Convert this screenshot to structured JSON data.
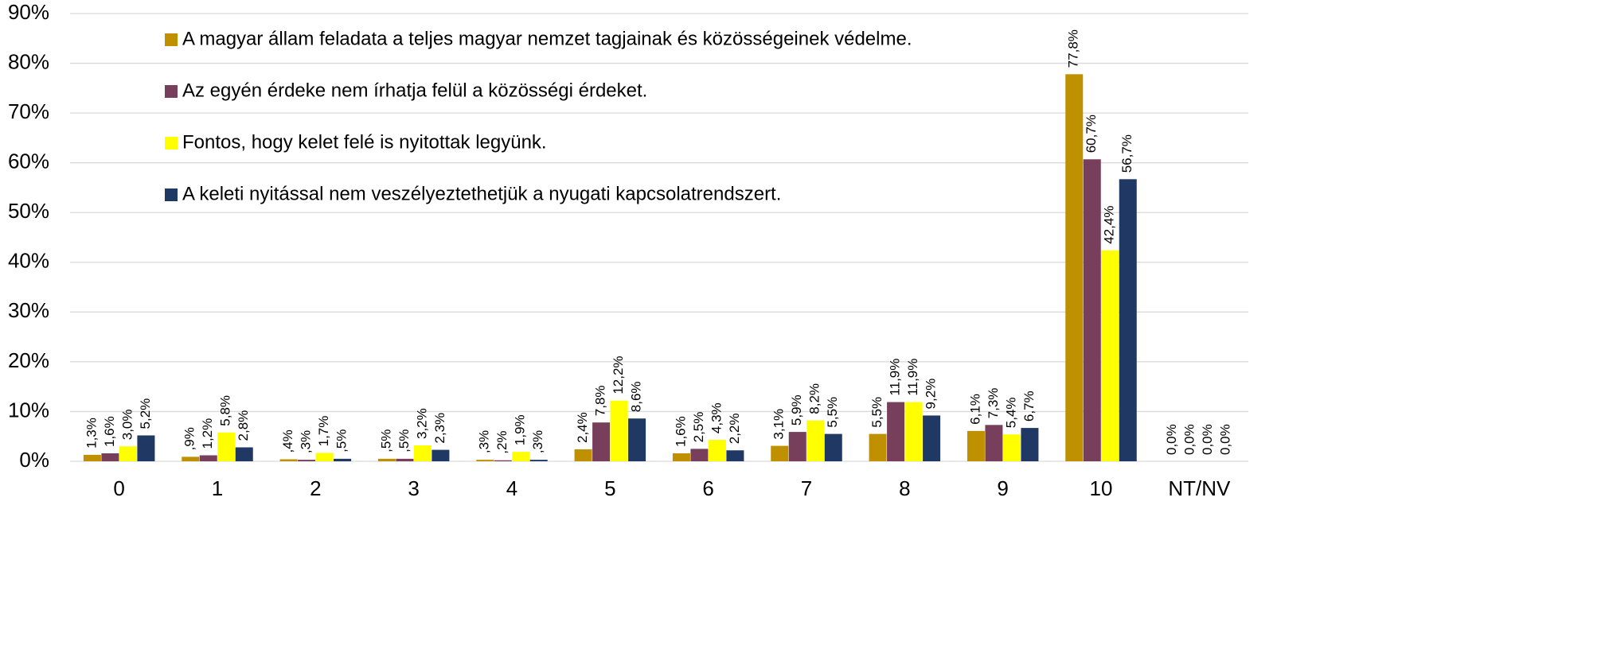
{
  "chart_data": {
    "type": "bar",
    "categories": [
      "0",
      "1",
      "2",
      "3",
      "4",
      "5",
      "6",
      "7",
      "8",
      "9",
      "10",
      "NT/NV"
    ],
    "series": [
      {
        "name": "A magyar állam feladata a teljes magyar nemzet tagjainak és közösségeinek védelme.",
        "color": "#bf9000",
        "values": [
          1.3,
          0.9,
          0.4,
          0.5,
          0.3,
          2.4,
          1.6,
          3.1,
          5.5,
          6.1,
          77.8,
          0.0
        ],
        "value_labels": [
          "1,3%",
          ",9%",
          ",4%",
          ",5%",
          ",3%",
          "2,4%",
          "1,6%",
          "3,1%",
          "5,5%",
          "6,1%",
          "77,8%",
          "0,0%"
        ]
      },
      {
        "name": "Az egyén érdeke nem írhatja felül a közösségi érdeket.",
        "color": "#773f5b",
        "values": [
          1.6,
          1.2,
          0.3,
          0.5,
          0.2,
          7.8,
          2.5,
          5.9,
          11.9,
          7.3,
          60.7,
          0.0
        ],
        "value_labels": [
          "1,6%",
          "1,2%",
          ",3%",
          ",5%",
          ",2%",
          "7,8%",
          "2,5%",
          "5,9%",
          "11,9%",
          "7,3%",
          "60,7%",
          "0,0%"
        ]
      },
      {
        "name": "Fontos, hogy kelet felé is nyitottak legyünk.",
        "color": "#ffff00",
        "values": [
          3.0,
          5.8,
          1.7,
          3.2,
          1.9,
          12.2,
          4.3,
          8.2,
          11.9,
          5.4,
          42.4,
          0.0
        ],
        "value_labels": [
          "3,0%",
          "5,8%",
          "1,7%",
          "3,2%",
          "1,9%",
          "12,2%",
          "4,3%",
          "8,2%",
          "11,9%",
          "5,4%",
          "42,4%",
          "0,0%"
        ]
      },
      {
        "name": "A keleti nyitással nem veszélyeztethetjük a nyugati kapcsolatrendszert.",
        "color": "#1f3864",
        "values": [
          5.2,
          2.8,
          0.5,
          2.3,
          0.3,
          8.6,
          2.2,
          5.5,
          9.2,
          6.7,
          56.7,
          0.0
        ],
        "value_labels": [
          "5,2%",
          "2,8%",
          ",5%",
          "2,3%",
          ",3%",
          "8,6%",
          "2,2%",
          "5,5%",
          "9,2%",
          "6,7%",
          "56,7%",
          "0,0%"
        ]
      }
    ],
    "ylim": [
      0,
      90
    ],
    "yticks": [
      {
        "value": 0,
        "label": "0%"
      },
      {
        "value": 10,
        "label": "10%"
      },
      {
        "value": 20,
        "label": "20%"
      },
      {
        "value": 30,
        "label": "30%"
      },
      {
        "value": 40,
        "label": "40%"
      },
      {
        "value": 50,
        "label": "50%"
      },
      {
        "value": 60,
        "label": "60%"
      },
      {
        "value": 70,
        "label": "70%"
      },
      {
        "value": 80,
        "label": "80%"
      },
      {
        "value": 90,
        "label": "90%"
      }
    ],
    "grid": true,
    "legend": "upper left"
  }
}
